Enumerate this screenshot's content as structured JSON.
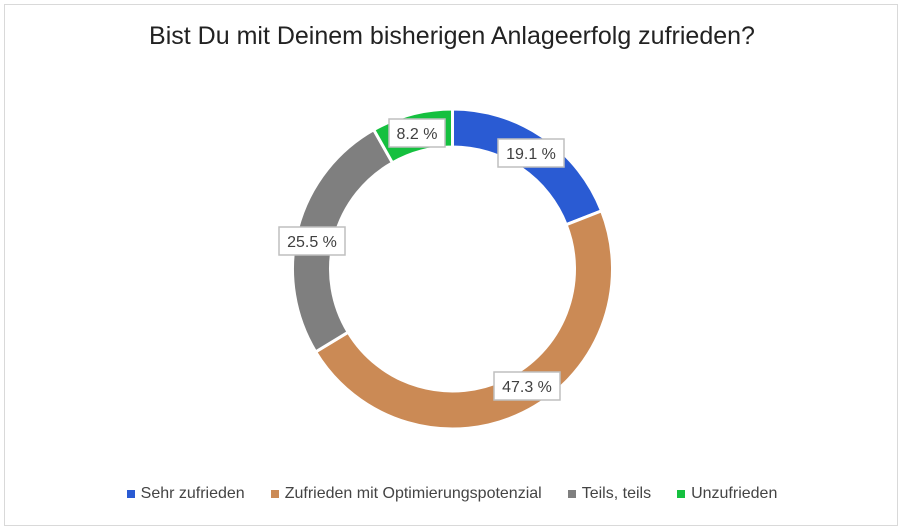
{
  "chart_data": {
    "type": "pie",
    "variant": "donut",
    "title": "Bist Du mit Deinem bisherigen Anlageerfolg zufrieden?",
    "categories": [
      "Sehr zufrieden",
      "Zufrieden mit Optimierungspotenzial",
      "Teils, teils",
      "Unzufrieden"
    ],
    "values": [
      19.1,
      47.3,
      25.5,
      8.2
    ],
    "data_labels": [
      "19.1 %",
      "47.3 %",
      "25.5 %",
      "8.2 %"
    ],
    "colors": [
      "#2a5bd3",
      "#cb8a55",
      "#7f7f7f",
      "#15c03f"
    ],
    "legend": "bottom"
  }
}
